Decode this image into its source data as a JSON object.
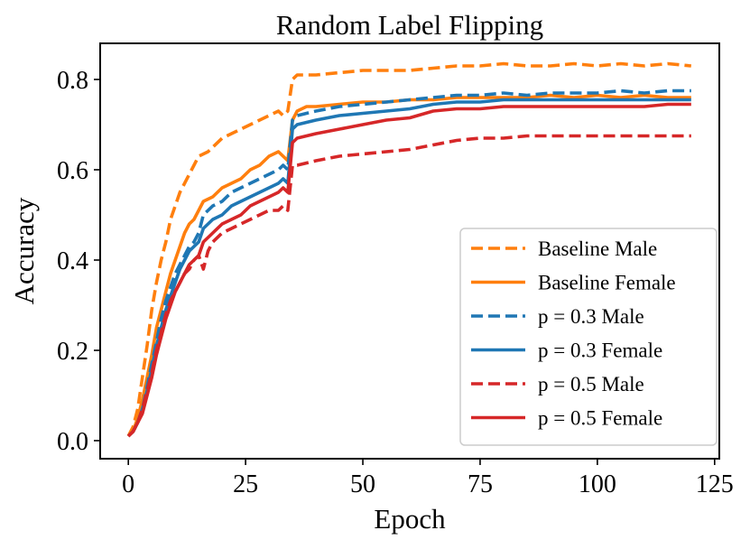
{
  "chart_data": {
    "type": "line",
    "title": "Random Label Flipping",
    "xlabel": "Epoch",
    "ylabel": "Accuracy",
    "xlim": [
      -6,
      126
    ],
    "ylim": [
      -0.04,
      0.88
    ],
    "xticks": [
      0,
      25,
      50,
      75,
      100,
      125
    ],
    "yticks": [
      0.0,
      0.2,
      0.4,
      0.6,
      0.8
    ],
    "xtick_labels": [
      "0",
      "25",
      "50",
      "75",
      "100",
      "125"
    ],
    "ytick_labels": [
      "0.0",
      "0.2",
      "0.4",
      "0.6",
      "0.8"
    ],
    "legend_position": "lower-right",
    "grid": false,
    "series": [
      {
        "name": "Baseline Male",
        "color": "#ff7f0e",
        "dash": "dashed",
        "points": [
          [
            0,
            0.01
          ],
          [
            1,
            0.03
          ],
          [
            2,
            0.07
          ],
          [
            3,
            0.14
          ],
          [
            4,
            0.21
          ],
          [
            5,
            0.29
          ],
          [
            6,
            0.35
          ],
          [
            7,
            0.4
          ],
          [
            8,
            0.44
          ],
          [
            9,
            0.49
          ],
          [
            10,
            0.52
          ],
          [
            11,
            0.55
          ],
          [
            12,
            0.57
          ],
          [
            13,
            0.59
          ],
          [
            14,
            0.61
          ],
          [
            15,
            0.63
          ],
          [
            17,
            0.64
          ],
          [
            18,
            0.65
          ],
          [
            20,
            0.67
          ],
          [
            22,
            0.68
          ],
          [
            24,
            0.69
          ],
          [
            26,
            0.7
          ],
          [
            28,
            0.71
          ],
          [
            30,
            0.72
          ],
          [
            32,
            0.73
          ],
          [
            33,
            0.72
          ],
          [
            34,
            0.73
          ],
          [
            35,
            0.8
          ],
          [
            36,
            0.81
          ],
          [
            40,
            0.81
          ],
          [
            45,
            0.815
          ],
          [
            50,
            0.82
          ],
          [
            55,
            0.82
          ],
          [
            60,
            0.82
          ],
          [
            65,
            0.825
          ],
          [
            70,
            0.83
          ],
          [
            75,
            0.83
          ],
          [
            80,
            0.835
          ],
          [
            85,
            0.83
          ],
          [
            90,
            0.83
          ],
          [
            95,
            0.835
          ],
          [
            100,
            0.83
          ],
          [
            105,
            0.835
          ],
          [
            110,
            0.83
          ],
          [
            115,
            0.835
          ],
          [
            120,
            0.83
          ]
        ]
      },
      {
        "name": "Baseline Female",
        "color": "#ff7f0e",
        "dash": "solid",
        "points": [
          [
            0,
            0.01
          ],
          [
            1,
            0.02
          ],
          [
            2,
            0.05
          ],
          [
            3,
            0.09
          ],
          [
            4,
            0.14
          ],
          [
            5,
            0.19
          ],
          [
            6,
            0.25
          ],
          [
            7,
            0.29
          ],
          [
            8,
            0.33
          ],
          [
            9,
            0.37
          ],
          [
            10,
            0.4
          ],
          [
            11,
            0.43
          ],
          [
            12,
            0.46
          ],
          [
            13,
            0.48
          ],
          [
            14,
            0.49
          ],
          [
            15,
            0.51
          ],
          [
            16,
            0.53
          ],
          [
            18,
            0.54
          ],
          [
            20,
            0.56
          ],
          [
            22,
            0.57
          ],
          [
            24,
            0.58
          ],
          [
            26,
            0.6
          ],
          [
            28,
            0.61
          ],
          [
            30,
            0.63
          ],
          [
            32,
            0.64
          ],
          [
            33,
            0.63
          ],
          [
            34,
            0.62
          ],
          [
            35,
            0.71
          ],
          [
            36,
            0.73
          ],
          [
            38,
            0.74
          ],
          [
            40,
            0.74
          ],
          [
            45,
            0.745
          ],
          [
            50,
            0.75
          ],
          [
            55,
            0.75
          ],
          [
            60,
            0.755
          ],
          [
            65,
            0.755
          ],
          [
            70,
            0.76
          ],
          [
            75,
            0.76
          ],
          [
            80,
            0.76
          ],
          [
            85,
            0.76
          ],
          [
            90,
            0.765
          ],
          [
            95,
            0.76
          ],
          [
            100,
            0.765
          ],
          [
            105,
            0.76
          ],
          [
            110,
            0.765
          ],
          [
            115,
            0.76
          ],
          [
            120,
            0.76
          ]
        ]
      },
      {
        "name": "p = 0.3 Male",
        "color": "#1f77b4",
        "dash": "dashed",
        "points": [
          [
            0,
            0.01
          ],
          [
            1,
            0.02
          ],
          [
            2,
            0.04
          ],
          [
            3,
            0.07
          ],
          [
            4,
            0.12
          ],
          [
            5,
            0.17
          ],
          [
            6,
            0.22
          ],
          [
            7,
            0.27
          ],
          [
            8,
            0.31
          ],
          [
            9,
            0.34
          ],
          [
            10,
            0.37
          ],
          [
            11,
            0.39
          ],
          [
            12,
            0.41
          ],
          [
            13,
            0.43
          ],
          [
            14,
            0.44
          ],
          [
            15,
            0.46
          ],
          [
            16,
            0.5
          ],
          [
            18,
            0.52
          ],
          [
            20,
            0.53
          ],
          [
            22,
            0.55
          ],
          [
            24,
            0.56
          ],
          [
            26,
            0.57
          ],
          [
            28,
            0.58
          ],
          [
            30,
            0.59
          ],
          [
            32,
            0.6
          ],
          [
            33,
            0.61
          ],
          [
            34,
            0.6
          ],
          [
            35,
            0.71
          ],
          [
            36,
            0.72
          ],
          [
            40,
            0.73
          ],
          [
            45,
            0.74
          ],
          [
            50,
            0.745
          ],
          [
            55,
            0.75
          ],
          [
            60,
            0.755
          ],
          [
            65,
            0.76
          ],
          [
            70,
            0.765
          ],
          [
            75,
            0.765
          ],
          [
            80,
            0.77
          ],
          [
            85,
            0.765
          ],
          [
            90,
            0.77
          ],
          [
            95,
            0.77
          ],
          [
            100,
            0.77
          ],
          [
            105,
            0.775
          ],
          [
            110,
            0.77
          ],
          [
            115,
            0.775
          ],
          [
            120,
            0.775
          ]
        ]
      },
      {
        "name": "p = 0.3 Female",
        "color": "#1f77b4",
        "dash": "solid",
        "points": [
          [
            0,
            0.01
          ],
          [
            1,
            0.02
          ],
          [
            2,
            0.04
          ],
          [
            3,
            0.07
          ],
          [
            4,
            0.11
          ],
          [
            5,
            0.16
          ],
          [
            6,
            0.21
          ],
          [
            7,
            0.25
          ],
          [
            8,
            0.29
          ],
          [
            9,
            0.32
          ],
          [
            10,
            0.35
          ],
          [
            11,
            0.38
          ],
          [
            12,
            0.4
          ],
          [
            13,
            0.42
          ],
          [
            14,
            0.43
          ],
          [
            15,
            0.44
          ],
          [
            16,
            0.47
          ],
          [
            18,
            0.49
          ],
          [
            20,
            0.5
          ],
          [
            22,
            0.52
          ],
          [
            24,
            0.53
          ],
          [
            26,
            0.54
          ],
          [
            28,
            0.55
          ],
          [
            30,
            0.56
          ],
          [
            32,
            0.57
          ],
          [
            33,
            0.58
          ],
          [
            34,
            0.57
          ],
          [
            35,
            0.69
          ],
          [
            36,
            0.7
          ],
          [
            40,
            0.71
          ],
          [
            45,
            0.72
          ],
          [
            50,
            0.725
          ],
          [
            55,
            0.73
          ],
          [
            60,
            0.735
          ],
          [
            65,
            0.745
          ],
          [
            70,
            0.75
          ],
          [
            75,
            0.75
          ],
          [
            80,
            0.755
          ],
          [
            85,
            0.755
          ],
          [
            90,
            0.755
          ],
          [
            95,
            0.755
          ],
          [
            100,
            0.755
          ],
          [
            105,
            0.755
          ],
          [
            110,
            0.755
          ],
          [
            115,
            0.755
          ],
          [
            120,
            0.755
          ]
        ]
      },
      {
        "name": "p = 0.5 Male",
        "color": "#d62728",
        "dash": "dashed",
        "points": [
          [
            0,
            0.01
          ],
          [
            1,
            0.02
          ],
          [
            2,
            0.04
          ],
          [
            3,
            0.07
          ],
          [
            4,
            0.11
          ],
          [
            5,
            0.15
          ],
          [
            6,
            0.2
          ],
          [
            7,
            0.24
          ],
          [
            8,
            0.28
          ],
          [
            9,
            0.31
          ],
          [
            10,
            0.33
          ],
          [
            11,
            0.35
          ],
          [
            12,
            0.37
          ],
          [
            13,
            0.38
          ],
          [
            14,
            0.4
          ],
          [
            15,
            0.41
          ],
          [
            16,
            0.38
          ],
          [
            17,
            0.42
          ],
          [
            18,
            0.44
          ],
          [
            20,
            0.46
          ],
          [
            22,
            0.47
          ],
          [
            24,
            0.48
          ],
          [
            26,
            0.49
          ],
          [
            28,
            0.5
          ],
          [
            30,
            0.51
          ],
          [
            32,
            0.51
          ],
          [
            33,
            0.52
          ],
          [
            34,
            0.51
          ],
          [
            35,
            0.61
          ],
          [
            36,
            0.61
          ],
          [
            40,
            0.62
          ],
          [
            45,
            0.63
          ],
          [
            50,
            0.635
          ],
          [
            55,
            0.64
          ],
          [
            60,
            0.645
          ],
          [
            65,
            0.655
          ],
          [
            70,
            0.665
          ],
          [
            75,
            0.67
          ],
          [
            80,
            0.67
          ],
          [
            85,
            0.675
          ],
          [
            90,
            0.675
          ],
          [
            95,
            0.675
          ],
          [
            100,
            0.675
          ],
          [
            105,
            0.675
          ],
          [
            110,
            0.675
          ],
          [
            115,
            0.675
          ],
          [
            120,
            0.675
          ]
        ]
      },
      {
        "name": "p = 0.5 Female",
        "color": "#d62728",
        "dash": "solid",
        "points": [
          [
            0,
            0.01
          ],
          [
            1,
            0.02
          ],
          [
            2,
            0.04
          ],
          [
            3,
            0.06
          ],
          [
            4,
            0.1
          ],
          [
            5,
            0.14
          ],
          [
            6,
            0.19
          ],
          [
            7,
            0.23
          ],
          [
            8,
            0.27
          ],
          [
            9,
            0.3
          ],
          [
            10,
            0.33
          ],
          [
            11,
            0.35
          ],
          [
            12,
            0.37
          ],
          [
            13,
            0.39
          ],
          [
            14,
            0.4
          ],
          [
            15,
            0.41
          ],
          [
            16,
            0.44
          ],
          [
            18,
            0.46
          ],
          [
            20,
            0.48
          ],
          [
            22,
            0.49
          ],
          [
            24,
            0.5
          ],
          [
            26,
            0.52
          ],
          [
            28,
            0.53
          ],
          [
            30,
            0.54
          ],
          [
            32,
            0.55
          ],
          [
            33,
            0.56
          ],
          [
            34,
            0.55
          ],
          [
            35,
            0.66
          ],
          [
            36,
            0.67
          ],
          [
            40,
            0.68
          ],
          [
            45,
            0.69
          ],
          [
            50,
            0.7
          ],
          [
            55,
            0.71
          ],
          [
            60,
            0.715
          ],
          [
            65,
            0.73
          ],
          [
            70,
            0.735
          ],
          [
            75,
            0.735
          ],
          [
            80,
            0.74
          ],
          [
            85,
            0.74
          ],
          [
            90,
            0.74
          ],
          [
            95,
            0.74
          ],
          [
            100,
            0.74
          ],
          [
            105,
            0.74
          ],
          [
            110,
            0.74
          ],
          [
            115,
            0.745
          ],
          [
            120,
            0.745
          ]
        ]
      }
    ]
  }
}
